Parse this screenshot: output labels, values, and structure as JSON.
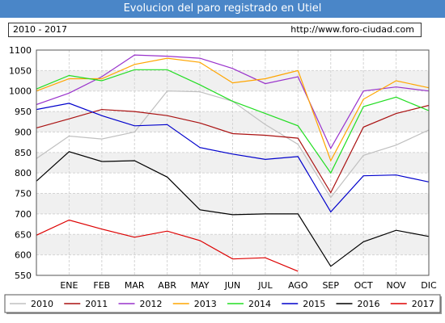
{
  "header": {
    "title": "Evolucion del paro registrado en Utiel",
    "period": "2010 - 2017",
    "source": "http://www.foro-ciudad.com"
  },
  "chart_data": {
    "type": "line",
    "categories": [
      "ENE",
      "FEB",
      "MAR",
      "ABR",
      "MAY",
      "JUN",
      "JUL",
      "AGO",
      "SEP",
      "OCT",
      "NOV",
      "DIC"
    ],
    "ylim": [
      550,
      1100
    ],
    "yticks": [
      550,
      600,
      650,
      700,
      750,
      800,
      850,
      900,
      950,
      1000,
      1050,
      1100
    ],
    "grid": true,
    "legend_position": "bottom",
    "series": [
      {
        "name": "2010",
        "color": "#c0c0c0",
        "start": 835,
        "values": [
          890,
          883,
          900,
          1000,
          998,
          975,
          918,
          870,
          740,
          843,
          868,
          905
        ]
      },
      {
        "name": "2011",
        "color": "#aa1111",
        "start": 910,
        "values": [
          932,
          955,
          950,
          940,
          922,
          896,
          892,
          885,
          752,
          912,
          945,
          965
        ]
      },
      {
        "name": "2012",
        "color": "#9932cc",
        "start": 967,
        "values": [
          995,
          1035,
          1088,
          1085,
          1080,
          1055,
          1018,
          1035,
          860,
          1000,
          1010,
          1000
        ]
      },
      {
        "name": "2013",
        "color": "#ffa500",
        "start": 1000,
        "values": [
          1030,
          1030,
          1065,
          1080,
          1070,
          1020,
          1030,
          1050,
          830,
          980,
          1025,
          1008
        ]
      },
      {
        "name": "2014",
        "color": "#22dd22",
        "start": 1005,
        "values": [
          1038,
          1025,
          1052,
          1052,
          1015,
          975,
          945,
          915,
          800,
          962,
          985,
          952
        ]
      },
      {
        "name": "2015",
        "color": "#0000cc",
        "start": 955,
        "values": [
          970,
          940,
          915,
          918,
          862,
          846,
          833,
          840,
          705,
          793,
          795,
          778
        ]
      },
      {
        "name": "2016",
        "color": "#000000",
        "start": 780,
        "values": [
          852,
          828,
          830,
          790,
          710,
          698,
          700,
          700,
          572,
          632,
          660,
          645
        ]
      },
      {
        "name": "2017",
        "color": "#dd0000",
        "start": 648,
        "values": [
          685,
          663,
          643,
          658,
          635,
          590,
          593,
          560,
          null,
          null,
          null,
          null
        ]
      }
    ]
  }
}
